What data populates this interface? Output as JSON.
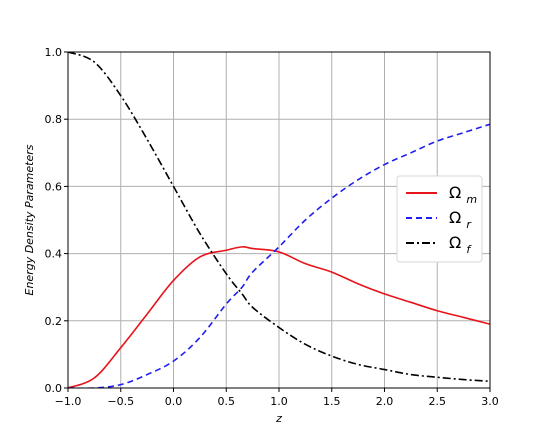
{
  "chart_data": {
    "type": "line",
    "xlabel": "z",
    "ylabel": "Energy Density Parameters",
    "xlim": [
      -1.0,
      3.0
    ],
    "ylim": [
      0.0,
      1.0
    ],
    "xticks": [
      "−1.0",
      "−0.5",
      "0.0",
      "0.5",
      "1.0",
      "1.5",
      "2.0",
      "2.5",
      "3.0"
    ],
    "yticks": [
      "0.0",
      "0.2",
      "0.4",
      "0.6",
      "0.8",
      "1.0"
    ],
    "grid": true,
    "legend_position": "center-right",
    "x": [
      -1.0,
      -0.75,
      -0.5,
      -0.25,
      0.0,
      0.25,
      0.5,
      0.65,
      0.75,
      1.0,
      1.25,
      1.5,
      1.75,
      2.0,
      2.25,
      2.5,
      2.75,
      3.0
    ],
    "series": [
      {
        "name_base": "Ω",
        "name_sub": "m",
        "color": "#e8141b",
        "style": "solid",
        "values": [
          0.0,
          0.03,
          0.12,
          0.22,
          0.32,
          0.39,
          0.41,
          0.42,
          0.415,
          0.405,
          0.37,
          0.345,
          0.31,
          0.28,
          0.255,
          0.23,
          0.21,
          0.19
        ]
      },
      {
        "name_base": "Ω",
        "name_sub": "r",
        "color": "#1f1ff0",
        "style": "dashed",
        "values": [
          0.0,
          0.0,
          0.01,
          0.04,
          0.08,
          0.15,
          0.25,
          0.3,
          0.345,
          0.42,
          0.5,
          0.565,
          0.62,
          0.665,
          0.7,
          0.735,
          0.76,
          0.785
        ]
      },
      {
        "name_base": "Ω",
        "name_sub": "f",
        "color": "#000000",
        "style": "dashdot",
        "values": [
          1.0,
          0.97,
          0.87,
          0.74,
          0.6,
          0.46,
          0.34,
          0.28,
          0.24,
          0.18,
          0.13,
          0.095,
          0.07,
          0.055,
          0.04,
          0.032,
          0.025,
          0.02
        ]
      }
    ]
  }
}
